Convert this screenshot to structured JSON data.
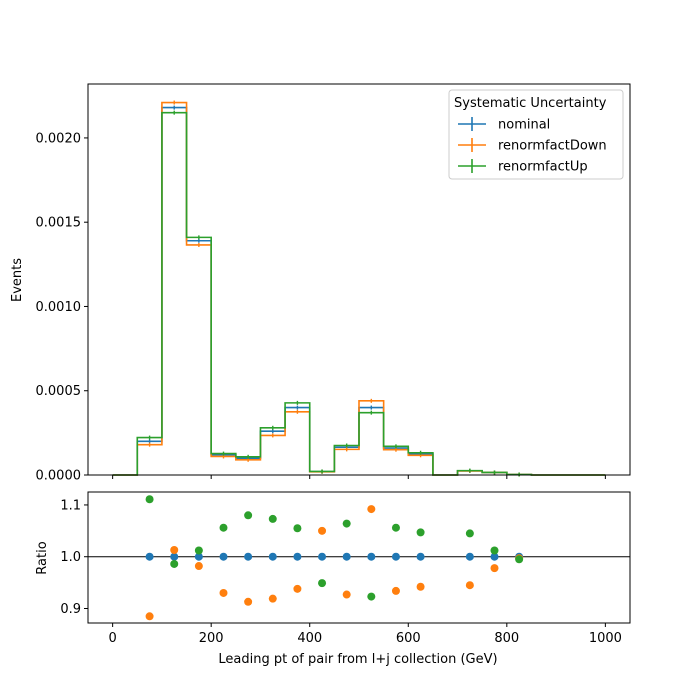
{
  "chart_data": [
    {
      "type": "line",
      "style": "step-histogram",
      "ylabel": "Events",
      "xlim": [
        -50,
        1050
      ],
      "ylim": [
        0,
        0.00232
      ],
      "yticks": [
        0,
        0.0005,
        0.001,
        0.0015,
        0.002
      ],
      "ytick_labels": [
        "0.0000",
        "0.0005",
        "0.0010",
        "0.0015",
        "0.0020"
      ],
      "xticks": [
        0,
        200,
        400,
        600,
        800,
        1000
      ],
      "bin_edges": [
        0,
        50,
        100,
        150,
        200,
        250,
        300,
        350,
        400,
        450,
        500,
        550,
        600,
        650,
        700,
        750,
        800,
        850,
        900,
        950,
        1000
      ],
      "legend": {
        "title": "Systematic Uncertainty",
        "position": "upper-right"
      },
      "series": [
        {
          "name": "nominal",
          "color": "#1f77b4",
          "values": [
            0,
            0.0002,
            0.00218,
            0.00139,
            0.00012,
            0.0001,
            0.00026,
            0.0004,
            2e-05,
            0.000165,
            0.0004,
            0.00016,
            0.000125,
            0,
            2.5e-05,
            1.5e-05,
            3e-06,
            0,
            0,
            0
          ]
        },
        {
          "name": "renormfactDown",
          "color": "#ff7f0e",
          "values": [
            0,
            0.00018,
            0.00221,
            0.001365,
            0.00011,
            9e-05,
            0.000235,
            0.000375,
            1.9e-05,
            0.000152,
            0.00044,
            0.00015,
            0.000117,
            0,
            2.4e-05,
            1.5e-05,
            3e-06,
            0,
            0,
            0
          ]
        },
        {
          "name": "renormfactUp",
          "color": "#2ca02c",
          "values": [
            0,
            0.000222,
            0.00215,
            0.00141,
            0.000127,
            0.000108,
            0.00028,
            0.000428,
            2.1e-05,
            0.000175,
            0.00037,
            0.00017,
            0.000132,
            0,
            2.6e-05,
            1.5e-05,
            3e-06,
            0,
            0,
            0
          ]
        }
      ]
    },
    {
      "type": "scatter",
      "xlabel": "Leading pt of pair from l+j collection (GeV)",
      "ylabel": "Ratio",
      "xlim": [
        -50,
        1050
      ],
      "ylim": [
        0.872,
        1.125
      ],
      "yticks": [
        0.9,
        1.0,
        1.1
      ],
      "ytick_labels": [
        "0.9",
        "1.0",
        "1.1"
      ],
      "xticks": [
        0,
        200,
        400,
        600,
        800,
        1000
      ],
      "xtick_labels": [
        "0",
        "200",
        "400",
        "600",
        "800",
        "1000"
      ],
      "reference_line": 1.0,
      "series": [
        {
          "name": "nominal",
          "color": "#1f77b4",
          "x": [
            75,
            125,
            175,
            225,
            275,
            325,
            375,
            425,
            475,
            525,
            575,
            625,
            725,
            775,
            825
          ],
          "y": [
            1.0,
            1.0,
            1.0,
            1.0,
            1.0,
            1.0,
            1.0,
            1.0,
            1.0,
            1.0,
            1.0,
            1.0,
            1.0,
            1.0,
            1.0
          ]
        },
        {
          "name": "renormfactDown",
          "color": "#ff7f0e",
          "x": [
            75,
            125,
            175,
            225,
            275,
            325,
            375,
            425,
            475,
            525,
            575,
            625,
            725,
            775,
            825
          ],
          "y": [
            0.885,
            1.013,
            0.982,
            0.93,
            0.913,
            0.919,
            0.938,
            1.05,
            0.927,
            1.092,
            0.934,
            0.942,
            0.945,
            0.978,
            0.997
          ]
        },
        {
          "name": "renormfactUp",
          "color": "#2ca02c",
          "x": [
            75,
            125,
            175,
            225,
            275,
            325,
            375,
            425,
            475,
            525,
            575,
            625,
            725,
            775,
            825
          ],
          "y": [
            1.111,
            0.986,
            1.012,
            1.056,
            1.08,
            1.073,
            1.055,
            0.949,
            1.064,
            0.923,
            1.056,
            1.047,
            1.045,
            1.012,
            0.995
          ]
        }
      ]
    }
  ]
}
